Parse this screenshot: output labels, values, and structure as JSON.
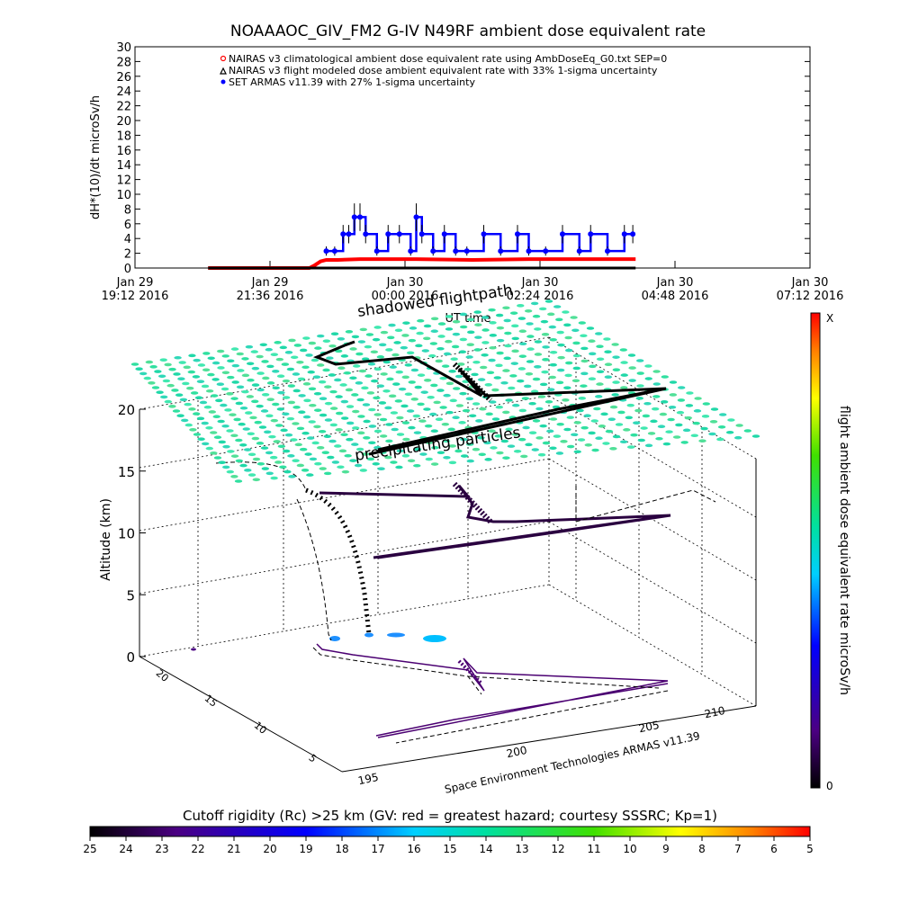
{
  "chart_data": [
    {
      "type": "line",
      "title": "NOAAAOC_GIV_FM2 G-IV    N49RF  ambient dose equivalent rate",
      "ylabel": "dH*(10)/dt microSv/h",
      "xlabel": "UT time",
      "ylim": [
        0,
        30
      ],
      "yticks": [
        "0",
        "2",
        "4",
        "6",
        "8",
        "10",
        "12",
        "14",
        "16",
        "18",
        "20",
        "22",
        "24",
        "26",
        "28",
        "30"
      ],
      "xticks": [
        {
          "l1": "Jan 29",
          "l2": "19:12 2016"
        },
        {
          "l1": "Jan 29",
          "l2": "21:36 2016"
        },
        {
          "l1": "Jan 30",
          "l2": "00:00 2016"
        },
        {
          "l1": "Jan 30",
          "l2": "02:24 2016"
        },
        {
          "l1": "Jan 30",
          "l2": "04:48 2016"
        },
        {
          "l1": "Jan 30",
          "l2": "07:12 2016"
        }
      ],
      "xtick_hours": [
        0,
        2.4,
        4.8,
        7.2,
        9.6,
        12.0
      ],
      "legend": [
        "NAIRAS v3 climatological ambient dose equivalent rate using AmbDoseEq_G0.txt SEP=0",
        "NAIRAS v3 flight modeled dose ambient equivalent rate with 33% 1-sigma uncertainty",
        "SET ARMAS v11.39 with 27% 1-sigma uncertainty"
      ],
      "series": [
        {
          "name": "NAIRAS v3 climatological ambient dose equivalent rate using AmbDoseEq_G0.txt SEP=0",
          "color": "#ff0000",
          "x_hours": [
            1.3,
            3.1,
            3.2,
            3.3,
            3.4,
            3.6,
            4.0,
            5.0,
            6.0,
            7.0,
            8.0,
            8.9
          ],
          "values": [
            0.0,
            0.0,
            0.4,
            0.9,
            1.1,
            1.1,
            1.2,
            1.2,
            1.1,
            1.2,
            1.2,
            1.2
          ]
        },
        {
          "name": "NAIRAS v3 flight modeled dose ambient equivalent rate with 33% 1-sigma uncertainty",
          "color": "#000000",
          "x_hours": [
            1.3,
            8.9
          ],
          "values": [
            0.0,
            0.0
          ]
        },
        {
          "name": "SET ARMAS v11.39 with 27% 1-sigma uncertainty",
          "color": "#0000ff",
          "x_hours": [
            3.4,
            3.55,
            3.7,
            3.8,
            3.9,
            4.0,
            4.1,
            4.3,
            4.5,
            4.7,
            4.9,
            5.0,
            5.1,
            5.3,
            5.5,
            5.7,
            5.9,
            6.2,
            6.5,
            6.8,
            7.0,
            7.3,
            7.6,
            7.9,
            8.1,
            8.4,
            8.7,
            8.85
          ],
          "values": [
            2.3,
            2.3,
            4.6,
            4.6,
            6.9,
            6.9,
            4.6,
            2.3,
            4.6,
            4.6,
            2.3,
            6.9,
            4.6,
            2.3,
            4.6,
            2.3,
            2.3,
            4.6,
            2.3,
            4.6,
            2.3,
            2.3,
            4.6,
            2.3,
            4.6,
            2.3,
            4.6,
            4.6
          ]
        }
      ]
    },
    {
      "type": "surface3d",
      "zlabel": "Altitude (km)",
      "zticks": [
        "0",
        "5",
        "10",
        "15",
        "20"
      ],
      "lat_ticks": [
        "5",
        "10",
        "15",
        "20"
      ],
      "lon_ticks": [
        "195",
        "200",
        "205",
        "210"
      ],
      "annotations": [
        "shadowed flightpath",
        "precipitating particles"
      ],
      "credit": "Space Environment Technologies ARMAS v11.39",
      "colorbar_label": "flight ambient dose equivalent rate microSv/h",
      "colorbar_top": "X",
      "colorbar_bottom": "0"
    },
    {
      "type": "colorbar",
      "title": "Cutoff rigidity (Rc) >25 km (GV: red = greatest hazard; courtesy SSSRC; Kp=1)",
      "ticks": [
        "25",
        "24",
        "23",
        "22",
        "21",
        "20",
        "19",
        "18",
        "17",
        "16",
        "15",
        "14",
        "13",
        "12",
        "11",
        "10",
        "9",
        "8",
        "7",
        "6",
        "5"
      ]
    }
  ],
  "colors": {
    "flightpath": "#000000",
    "cloud": "#30e0a0",
    "nairas_red": "#ff0000",
    "armas_blue": "#0000ff"
  }
}
